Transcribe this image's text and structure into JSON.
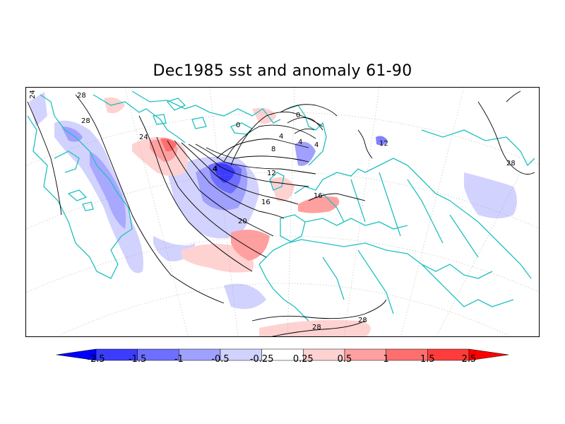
{
  "title": "Dec1985 sst and anomaly 61-90",
  "colors": {
    "coastline": "#20c0c0",
    "contour": "#000000",
    "graticule": "#999999"
  },
  "colorbar": {
    "labels": [
      "-2.5",
      "-1.5",
      "-1",
      "-0.5",
      "-0.25",
      "0.25",
      "0.5",
      "1",
      "1.5",
      "2.5"
    ],
    "bins": [
      "#0000ff",
      "#3c3cff",
      "#6e6eff",
      "#a0a0ff",
      "#d2d2ff",
      "#ffffff",
      "#ffd2d2",
      "#ffa0a0",
      "#ff6e6e",
      "#ff3c3c",
      "#ff0000"
    ]
  },
  "contour_labels": [
    "24",
    "28",
    "28",
    "24",
    "0",
    "4",
    "4",
    "4",
    "8",
    "12",
    "16",
    "16",
    "20",
    "12",
    "28",
    "28",
    "28",
    "0",
    "4"
  ]
}
